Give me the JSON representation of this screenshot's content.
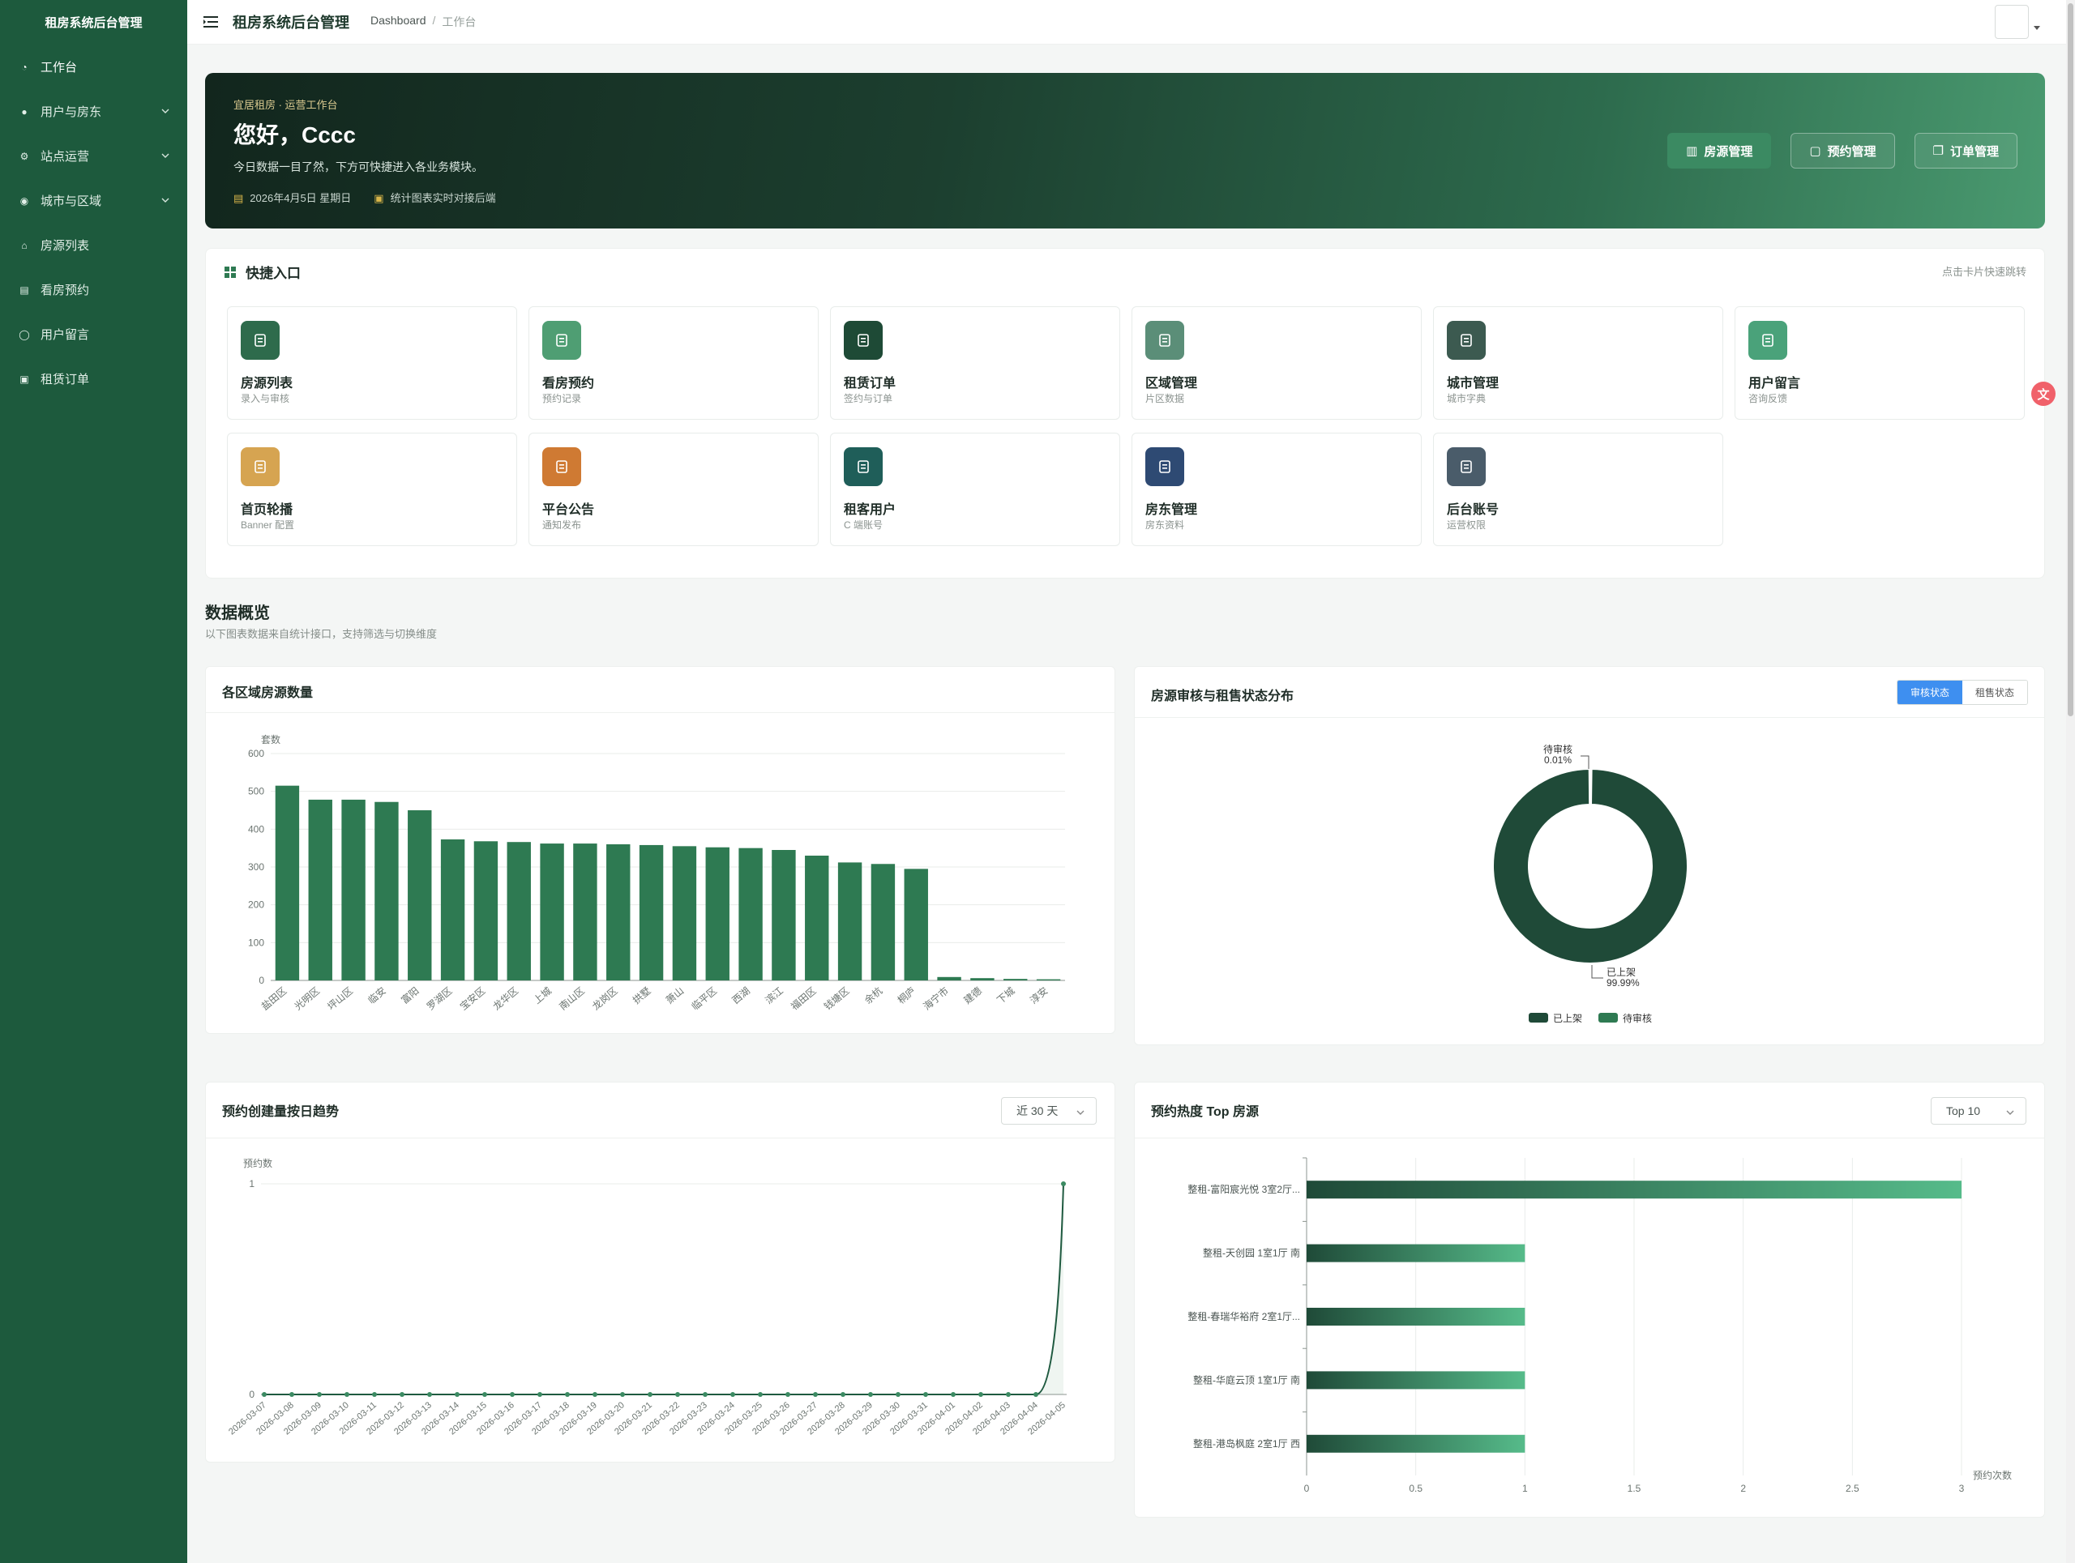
{
  "sidebar": {
    "title": "租房系统后台管理",
    "items": [
      {
        "label": "工作台",
        "icon": "dashboard-icon",
        "expandable": false
      },
      {
        "label": "用户与房东",
        "icon": "user-icon",
        "expandable": true
      },
      {
        "label": "站点运营",
        "icon": "gear-icon",
        "expandable": true
      },
      {
        "label": "城市与区域",
        "icon": "location-icon",
        "expandable": true
      },
      {
        "label": "房源列表",
        "icon": "home-icon",
        "expandable": false
      },
      {
        "label": "看房预约",
        "icon": "calendar-icon",
        "expandable": false
      },
      {
        "label": "用户留言",
        "icon": "chat-icon",
        "expandable": false
      },
      {
        "label": "租赁订单",
        "icon": "document-icon",
        "expandable": false
      }
    ]
  },
  "header": {
    "title": "租房系统后台管理",
    "breadcrumb": [
      "Dashboard",
      "工作台"
    ],
    "breadcrumb_sep": "/"
  },
  "hero": {
    "kicker": "宜居租房 · 运营工作台",
    "title": "您好，Cccc",
    "desc": "今日数据一目了然，下方可快捷进入各业务模块。",
    "date": "2026年4月5日 星期日",
    "note": "统计图表实时对接后端",
    "buttons": [
      "房源管理",
      "预约管理",
      "订单管理"
    ]
  },
  "quick": {
    "title": "快捷入口",
    "hint": "点击卡片快速跳转",
    "cards": [
      {
        "label": "房源列表",
        "sub": "录入与审核",
        "color": "#2e6b4c",
        "icon": "building-icon"
      },
      {
        "label": "看房预约",
        "sub": "预约记录",
        "color": "#4f9e73",
        "icon": "file-plus-icon"
      },
      {
        "label": "租赁订单",
        "sub": "签约与订单",
        "color": "#1e4a36",
        "icon": "copy-icon"
      },
      {
        "label": "区域管理",
        "sub": "片区数据",
        "color": "#5b8e78",
        "icon": "map-pin-icon"
      },
      {
        "label": "城市管理",
        "sub": "城市字典",
        "color": "#3c5a50",
        "icon": "location-icon"
      },
      {
        "label": "用户留言",
        "sub": "咨询反馈",
        "color": "#4aa27a",
        "icon": "mail-icon"
      },
      {
        "label": "首页轮播",
        "sub": "Banner 配置",
        "color": "#d6a451",
        "icon": "image-icon"
      },
      {
        "label": "平台公告",
        "sub": "通知发布",
        "color": "#cf7a33",
        "icon": "bell-icon"
      },
      {
        "label": "租客用户",
        "sub": "C 端账号",
        "color": "#1f5e59",
        "icon": "user-icon"
      },
      {
        "label": "房东管理",
        "sub": "房东资料",
        "color": "#2e4a73",
        "icon": "user-icon"
      },
      {
        "label": "后台账号",
        "sub": "运营权限",
        "color": "#4a5c6a",
        "icon": "user-icon"
      }
    ]
  },
  "overview": {
    "title": "数据概览",
    "subtitle": "以下图表数据来自统计接口，支持筛选与切换维度"
  },
  "cards": {
    "region": {
      "title": "各区域房源数量"
    },
    "status": {
      "title": "房源审核与租售状态分布",
      "tabs": [
        "审核状态",
        "租售状态"
      ]
    },
    "trend": {
      "title": "预约创建量按日趋势",
      "select": "近 30 天"
    },
    "top": {
      "title": "预约热度 Top 房源",
      "select": "Top 10"
    }
  },
  "chart_data": [
    {
      "type": "bar",
      "ylabel": "套数",
      "ylim": [
        0,
        600
      ],
      "yticks": [
        "0",
        "100",
        "200",
        "300",
        "400",
        "500",
        "600"
      ],
      "categories": [
        "盐田区",
        "光明区",
        "坪山区",
        "临安",
        "富阳",
        "罗湖区",
        "宝安区",
        "龙华区",
        "上城",
        "南山区",
        "龙岗区",
        "拱墅",
        "萧山",
        "临平区",
        "西湖",
        "滨江",
        "福田区",
        "钱塘区",
        "余杭",
        "桐庐",
        "海宁市",
        "建德",
        "下城",
        "淳安"
      ],
      "values": [
        515,
        478,
        478,
        472,
        450,
        373,
        368,
        366,
        362,
        362,
        360,
        358,
        355,
        352,
        350,
        345,
        330,
        312,
        308,
        295,
        9,
        6,
        4,
        3
      ],
      "color": "#2e7a52"
    },
    {
      "type": "pie",
      "slices": [
        {
          "label": "已上架",
          "value_label": "99.99%",
          "value": 99.99,
          "color": "#1f4a38"
        },
        {
          "label": "待审核",
          "value_label": "0.01%",
          "value": 0.01,
          "color": "#2e7a52"
        }
      ],
      "legend": [
        "已上架",
        "待审核"
      ],
      "legend_colors": [
        "#1f4a38",
        "#2e7a52"
      ]
    },
    {
      "type": "line",
      "ylabel": "预约数",
      "ylim": [
        0,
        1
      ],
      "yticks": [
        "0",
        "1"
      ],
      "x": [
        "2026-03-07",
        "2026-03-08",
        "2026-03-09",
        "2026-03-10",
        "2026-03-11",
        "2026-03-12",
        "2026-03-13",
        "2026-03-14",
        "2026-03-15",
        "2026-03-16",
        "2026-03-17",
        "2026-03-18",
        "2026-03-19",
        "2026-03-20",
        "2026-03-21",
        "2026-03-22",
        "2026-03-23",
        "2026-03-24",
        "2026-03-25",
        "2026-03-26",
        "2026-03-27",
        "2026-03-28",
        "2026-03-29",
        "2026-03-30",
        "2026-03-31",
        "2026-04-01",
        "2026-04-02",
        "2026-04-03",
        "2026-04-04",
        "2026-04-05"
      ],
      "values": [
        0,
        0,
        0,
        0,
        0,
        0,
        0,
        0,
        0,
        0,
        0,
        0,
        0,
        0,
        0,
        0,
        0,
        0,
        0,
        0,
        0,
        0,
        0,
        0,
        0,
        0,
        0,
        0,
        0,
        1
      ],
      "color": "#1f5a40"
    },
    {
      "type": "bar",
      "orientation": "horizontal",
      "xlabel": "预约次数",
      "xlim": [
        0,
        3
      ],
      "xticks": [
        "0",
        "0.5",
        "1",
        "1.5",
        "2",
        "2.5",
        "3"
      ],
      "categories": [
        "整租-富阳宸光悦 3室2厅...",
        "整租-天创园 1室1厅 南",
        "整租-春瑞华裕府 2室1厅...",
        "整租-华庭云顶 1室1厅 南",
        "整租-港岛枫庭 2室1厅 西"
      ],
      "values": [
        3,
        1,
        1,
        1,
        1
      ],
      "color_start": "#1f4a38",
      "color_end": "#56bb8a"
    }
  ]
}
